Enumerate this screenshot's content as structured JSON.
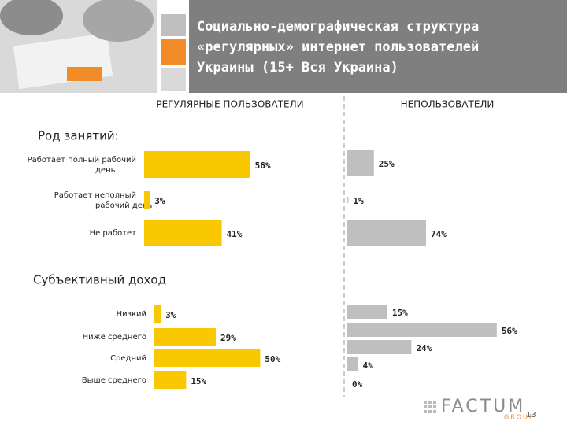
{
  "title_lines": [
    "Социально-демографическая структура",
    "«регулярных» интернет пользователей",
    "Украины (15+ Вся Украина)"
  ],
  "column_headers": [
    "РЕГУЛЯРНЫЕ ПОЛЬЗОВАТЕЛИ",
    "НЕПОЛЬЗОВАТЕЛИ"
  ],
  "chart_data": [
    {
      "type": "barh",
      "title": "Род занятий:",
      "categories": [
        "Работает полный рабочий день",
        "Работает неполный рабочий день",
        "Не работет"
      ],
      "series": [
        {
          "color": "#f9c800",
          "values": [
            56,
            3,
            41
          ],
          "value_labels": [
            "56%",
            "3%",
            "41%"
          ],
          "xlim": [
            0,
            104
          ]
        },
        {
          "color": "#bfbfbf",
          "values": [
            25,
            1,
            74
          ],
          "value_labels": [
            "25%",
            "1%",
            "74%"
          ],
          "xlim": [
            0,
            148
          ]
        }
      ]
    },
    {
      "type": "barh",
      "title": "Субъективный доход",
      "categories": [
        "Низкий",
        "Ниже среднего",
        "Средний",
        "Выше среднего",
        null
      ],
      "series": [
        {
          "color": "#f9c800",
          "values": [
            3,
            29,
            50,
            15,
            null
          ],
          "value_labels": [
            "3%",
            "29%",
            "50%",
            "15%",
            null
          ],
          "xlim": [
            0,
            93
          ]
        },
        {
          "color": "#bfbfbf",
          "values": [
            15,
            56,
            24,
            4,
            0
          ],
          "value_labels": [
            "15%",
            "56%",
            "24%",
            "4%",
            "0%"
          ],
          "xlim": [
            0,
            59
          ]
        }
      ]
    }
  ],
  "logo": {
    "name": "FACTUM",
    "group": "GROUP"
  },
  "page_number": "13"
}
